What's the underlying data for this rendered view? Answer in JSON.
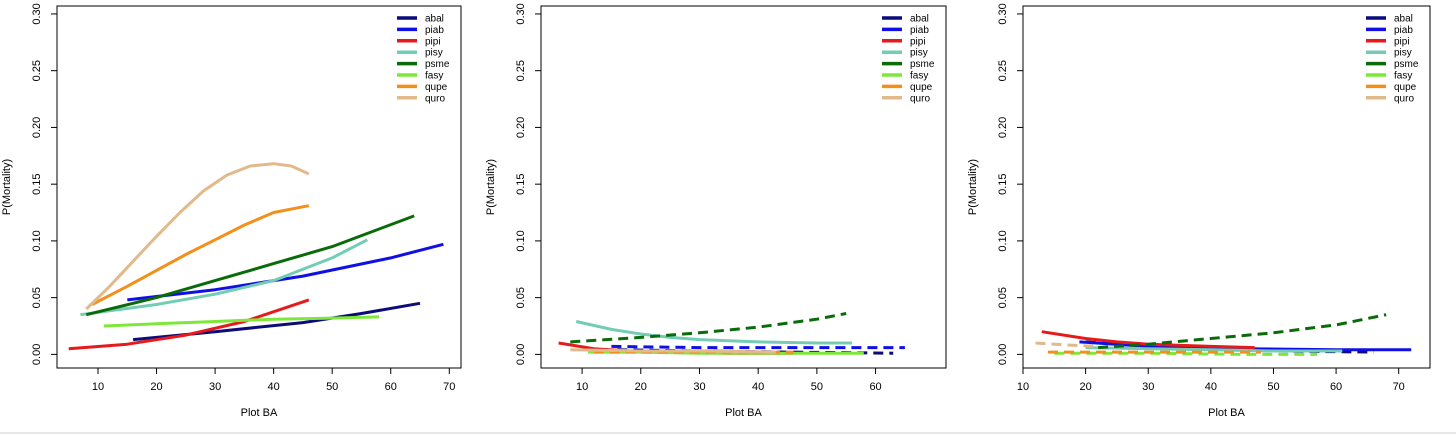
{
  "colors": {
    "abal": "#0b0b7a",
    "piab": "#1010e6",
    "pipi": "#e61a1a",
    "pisy": "#72cdb4",
    "psme": "#0b6b0b",
    "fasy": "#7ee83a",
    "qupe": "#f2901b",
    "quro": "#e2b98a"
  },
  "chart_data": [
    {
      "type": "line",
      "xlabel": "Plot BA",
      "ylabel": "P(Mortality)",
      "xlim": [
        3,
        72
      ],
      "ylim": [
        -0.012,
        0.307
      ],
      "xticks": [
        10,
        20,
        30,
        40,
        50,
        60,
        70
      ],
      "yticks": [
        0.0,
        0.05,
        0.1,
        0.15,
        0.2,
        0.25,
        0.3
      ],
      "ytick_labels": [
        "0.00",
        "0.05",
        "0.10",
        "0.15",
        "0.20",
        "0.25",
        "0.30"
      ],
      "legend_position": "top-right",
      "series": [
        {
          "name": "abal",
          "dashed": false,
          "x": [
            16,
            30,
            45,
            55,
            65
          ],
          "y": [
            0.013,
            0.02,
            0.028,
            0.036,
            0.045
          ]
        },
        {
          "name": "piab",
          "dashed": false,
          "x": [
            15,
            30,
            45,
            60,
            69
          ],
          "y": [
            0.048,
            0.057,
            0.069,
            0.085,
            0.097
          ]
        },
        {
          "name": "pipi",
          "dashed": false,
          "x": [
            5,
            15,
            25,
            35,
            46
          ],
          "y": [
            0.005,
            0.009,
            0.017,
            0.029,
            0.048
          ]
        },
        {
          "name": "pisy",
          "dashed": false,
          "x": [
            7,
            20,
            30,
            40,
            50,
            56
          ],
          "y": [
            0.035,
            0.044,
            0.053,
            0.065,
            0.085,
            0.101
          ]
        },
        {
          "name": "psme",
          "dashed": false,
          "x": [
            8,
            20,
            30,
            40,
            50,
            64
          ],
          "y": [
            0.035,
            0.05,
            0.065,
            0.08,
            0.095,
            0.122
          ]
        },
        {
          "name": "fasy",
          "dashed": false,
          "x": [
            11,
            20,
            30,
            40,
            50,
            58
          ],
          "y": [
            0.025,
            0.027,
            0.029,
            0.031,
            0.032,
            0.033
          ]
        },
        {
          "name": "qupe",
          "dashed": false,
          "x": [
            9,
            15,
            20,
            25,
            30,
            35,
            40,
            46
          ],
          "y": [
            0.044,
            0.06,
            0.074,
            0.088,
            0.101,
            0.114,
            0.125,
            0.131
          ]
        },
        {
          "name": "quro",
          "dashed": false,
          "x": [
            8,
            12,
            16,
            20,
            24,
            28,
            32,
            36,
            40,
            43,
            46
          ],
          "y": [
            0.04,
            0.06,
            0.082,
            0.104,
            0.125,
            0.144,
            0.158,
            0.166,
            0.168,
            0.166,
            0.159
          ]
        }
      ]
    },
    {
      "type": "line",
      "xlabel": "Plot BA",
      "ylabel": "P(Mortality)",
      "xlim": [
        3,
        72
      ],
      "ylim": [
        -0.012,
        0.307
      ],
      "xticks": [
        10,
        20,
        30,
        40,
        50,
        60
      ],
      "yticks": [
        0.0,
        0.05,
        0.1,
        0.15,
        0.2,
        0.25,
        0.3
      ],
      "ytick_labels": [
        "0.00",
        "0.05",
        "0.10",
        "0.15",
        "0.20",
        "0.25",
        "0.30"
      ],
      "legend_position": "top-right",
      "series": [
        {
          "name": "abal",
          "dashed": true,
          "x": [
            16,
            30,
            45,
            63
          ],
          "y": [
            0.004,
            0.003,
            0.002,
            0.001
          ]
        },
        {
          "name": "piab",
          "dashed": true,
          "x": [
            15,
            30,
            45,
            65
          ],
          "y": [
            0.007,
            0.006,
            0.006,
            0.006
          ]
        },
        {
          "name": "pipi",
          "dashed": false,
          "x": [
            6,
            12,
            18,
            25,
            35,
            46
          ],
          "y": [
            0.01,
            0.005,
            0.003,
            0.002,
            0.001,
            0.001
          ]
        },
        {
          "name": "pisy",
          "dashed": false,
          "x": [
            9,
            15,
            20,
            25,
            30,
            40,
            50,
            56
          ],
          "y": [
            0.029,
            0.022,
            0.018,
            0.015,
            0.013,
            0.011,
            0.01,
            0.01
          ]
        },
        {
          "name": "psme",
          "dashed": true,
          "x": [
            8,
            20,
            30,
            40,
            50,
            55
          ],
          "y": [
            0.011,
            0.015,
            0.019,
            0.024,
            0.031,
            0.036
          ]
        },
        {
          "name": "fasy",
          "dashed": false,
          "x": [
            11,
            20,
            30,
            40,
            50,
            58
          ],
          "y": [
            0.002,
            0.002,
            0.001,
            0.001,
            0.001,
            0.001
          ]
        },
        {
          "name": "qupe",
          "dashed": true,
          "x": [
            12,
            25,
            35,
            46
          ],
          "y": [
            0.002,
            0.002,
            0.002,
            0.002
          ]
        },
        {
          "name": "quro",
          "dashed": false,
          "x": [
            8,
            20,
            30,
            43
          ],
          "y": [
            0.004,
            0.003,
            0.003,
            0.002
          ]
        }
      ]
    },
    {
      "type": "line",
      "xlabel": "Plot BA",
      "ylabel": "P(Mortality)",
      "xlim": [
        10,
        75
      ],
      "ylim": [
        -0.012,
        0.307
      ],
      "xticks": [
        10,
        20,
        30,
        40,
        50,
        60,
        70
      ],
      "yticks": [
        0.0,
        0.05,
        0.1,
        0.15,
        0.2,
        0.25,
        0.3
      ],
      "ytick_labels": [
        "0.00",
        "0.05",
        "0.10",
        "0.15",
        "0.20",
        "0.25",
        "0.30"
      ],
      "legend_position": "top-right",
      "series": [
        {
          "name": "abal",
          "dashed": true,
          "x": [
            20,
            35,
            50,
            66
          ],
          "y": [
            0.011,
            0.006,
            0.003,
            0.002
          ]
        },
        {
          "name": "piab",
          "dashed": false,
          "x": [
            19,
            30,
            45,
            60,
            72
          ],
          "y": [
            0.011,
            0.007,
            0.005,
            0.004,
            0.004
          ]
        },
        {
          "name": "pipi",
          "dashed": false,
          "x": [
            13,
            20,
            25,
            30,
            40,
            47
          ],
          "y": [
            0.02,
            0.014,
            0.011,
            0.009,
            0.007,
            0.006
          ]
        },
        {
          "name": "pisy",
          "dashed": false,
          "x": [
            20,
            30,
            40,
            50,
            61
          ],
          "y": [
            0.006,
            0.005,
            0.004,
            0.003,
            0.003
          ]
        },
        {
          "name": "psme",
          "dashed": true,
          "x": [
            22,
            30,
            40,
            50,
            60,
            68
          ],
          "y": [
            0.006,
            0.009,
            0.014,
            0.019,
            0.026,
            0.035
          ]
        },
        {
          "name": "fasy",
          "dashed": true,
          "x": [
            15,
            30,
            45,
            57
          ],
          "y": [
            0.001,
            0.001,
            0.0,
            0.0
          ]
        },
        {
          "name": "qupe",
          "dashed": true,
          "x": [
            14,
            25,
            35,
            48
          ],
          "y": [
            0.002,
            0.002,
            0.002,
            0.002
          ]
        },
        {
          "name": "quro",
          "dashed": true,
          "x": [
            12,
            18,
            22
          ],
          "y": [
            0.01,
            0.008,
            0.007
          ]
        }
      ]
    }
  ]
}
